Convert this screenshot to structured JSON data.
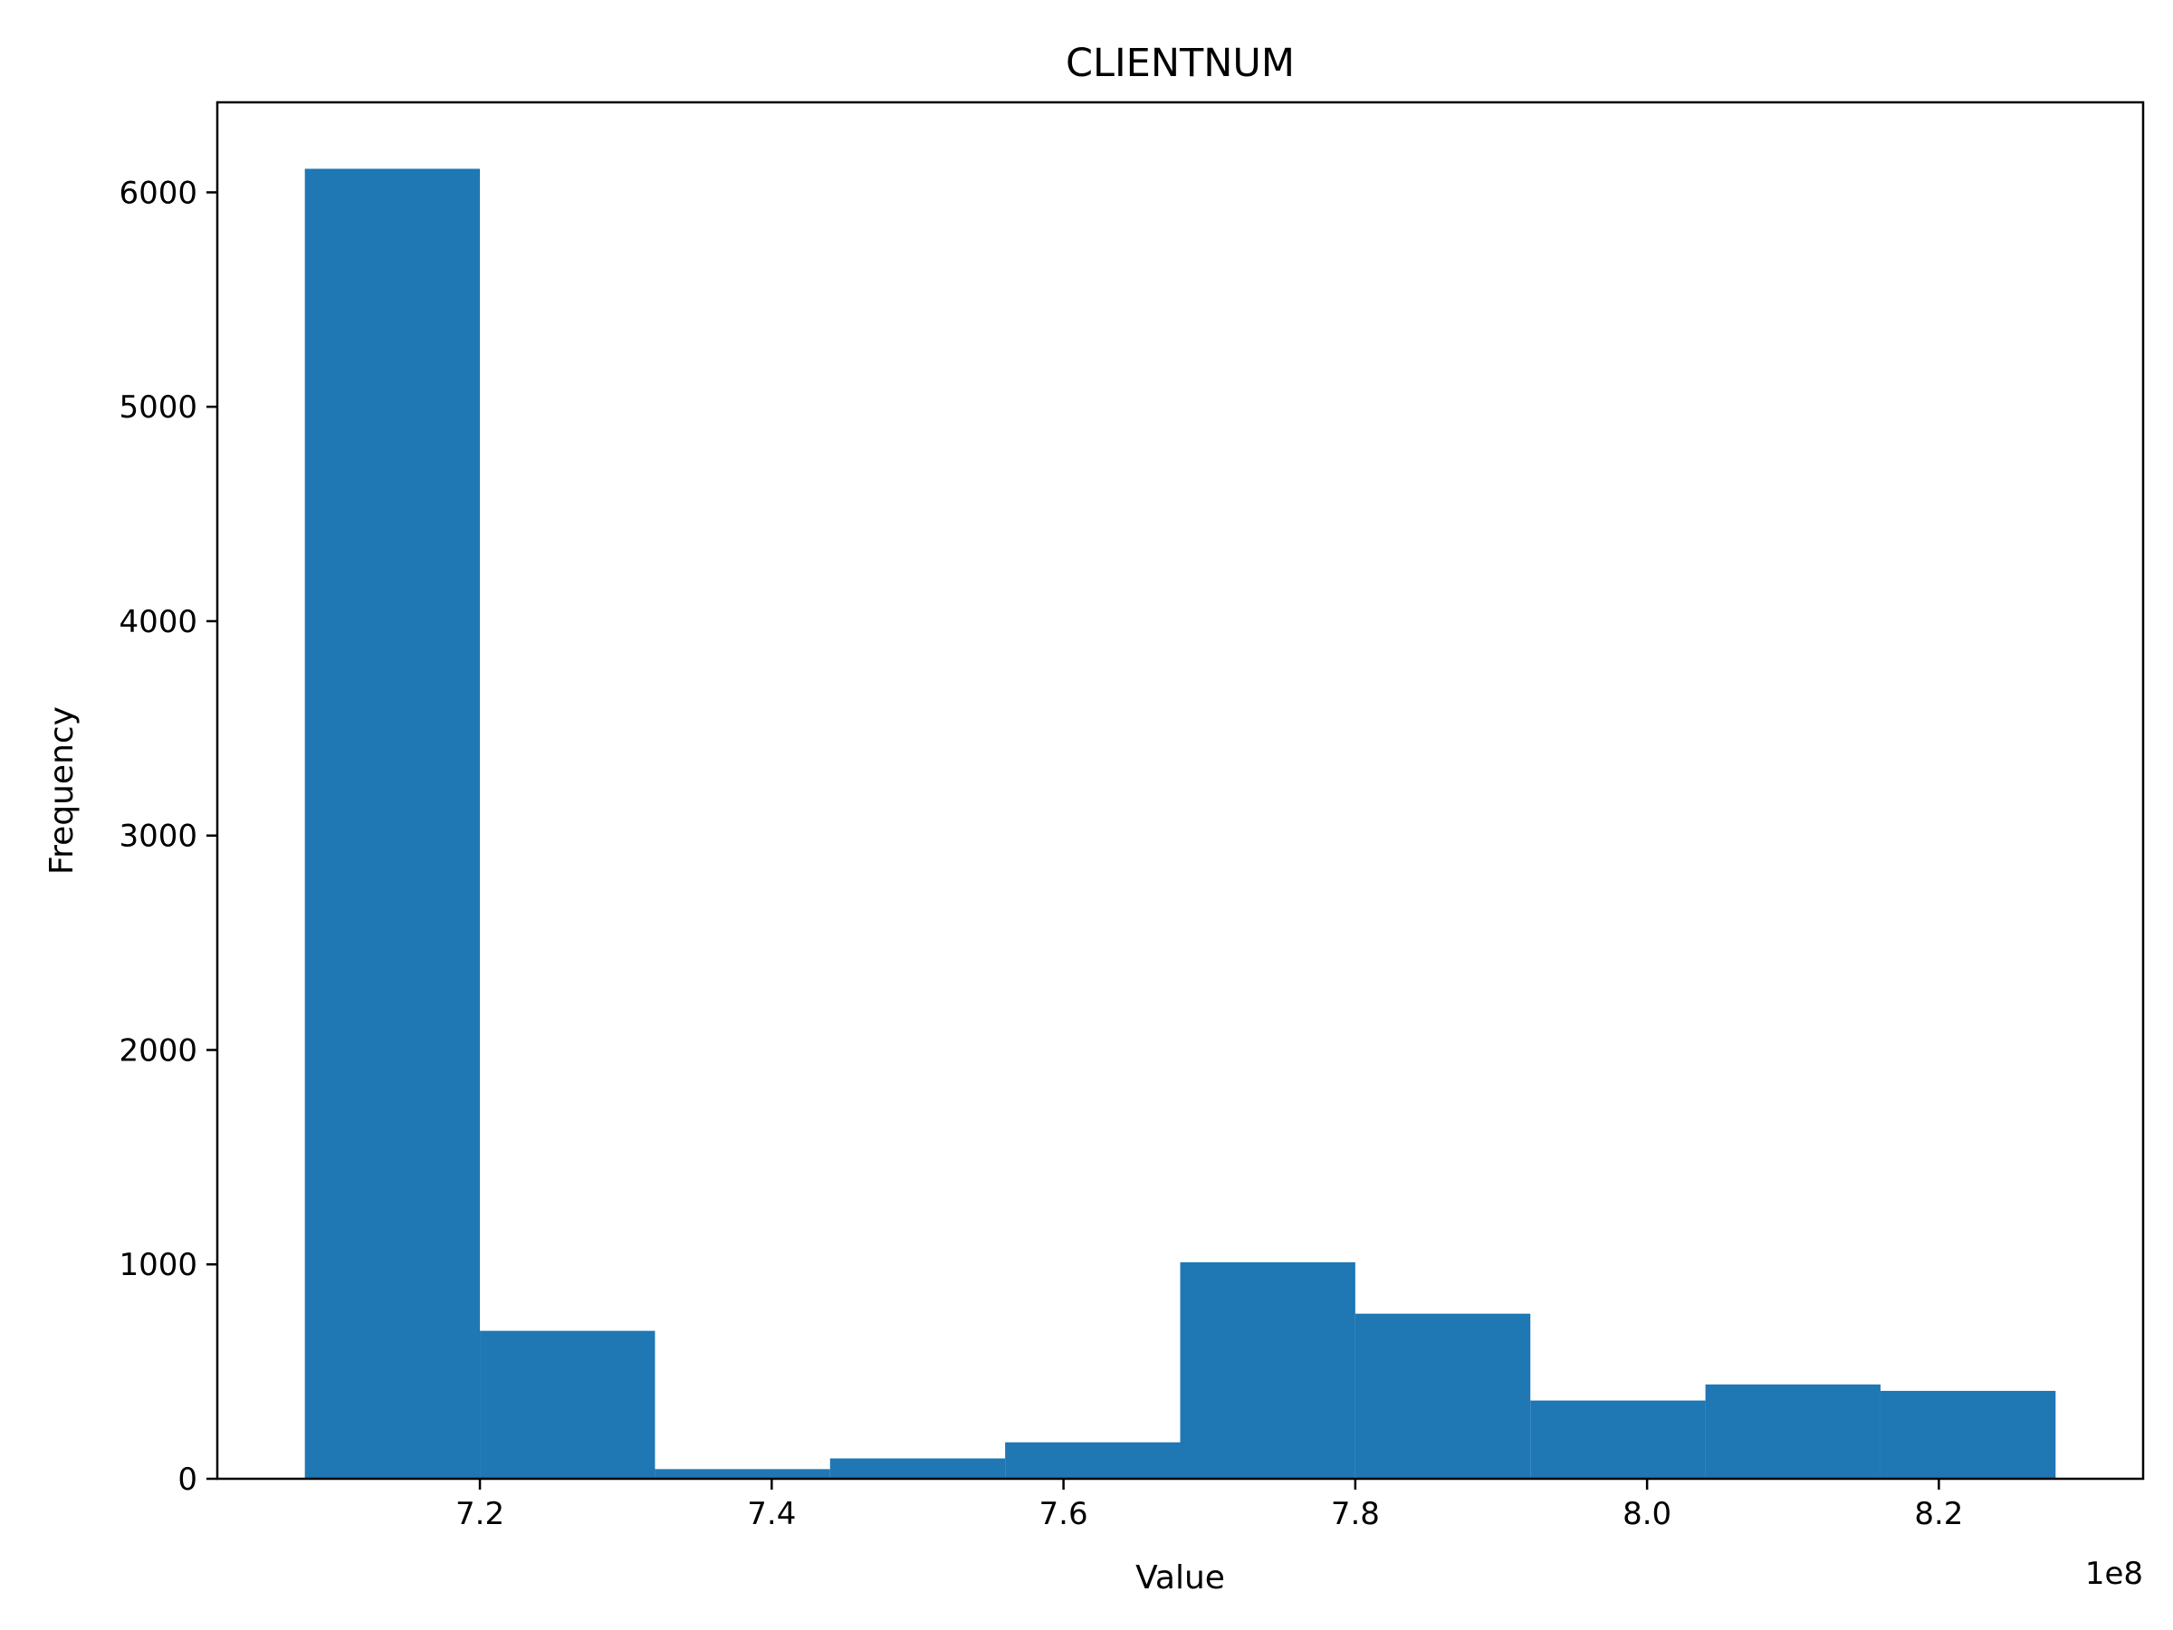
{
  "chart_data": {
    "type": "bar",
    "title": "CLIENTNUM",
    "xlabel": "Value",
    "ylabel": "Frequency",
    "x_offset_label": "1e8",
    "bins": [
      {
        "start": 7.08,
        "end": 7.2,
        "count": 6110
      },
      {
        "start": 7.2,
        "end": 7.32,
        "count": 690
      },
      {
        "start": 7.32,
        "end": 7.44,
        "count": 45
      },
      {
        "start": 7.44,
        "end": 7.56,
        "count": 95
      },
      {
        "start": 7.56,
        "end": 7.68,
        "count": 170
      },
      {
        "start": 7.68,
        "end": 7.8,
        "count": 1010
      },
      {
        "start": 7.8,
        "end": 7.92,
        "count": 770
      },
      {
        "start": 7.92,
        "end": 8.04,
        "count": 365
      },
      {
        "start": 8.04,
        "end": 8.16,
        "count": 440
      },
      {
        "start": 8.16,
        "end": 8.28,
        "count": 410
      }
    ],
    "xlim": [
      7.02,
      8.34
    ],
    "ylim": [
      0,
      6420
    ],
    "xticks": [
      {
        "value": 7.2,
        "label": "7.2"
      },
      {
        "value": 7.4,
        "label": "7.4"
      },
      {
        "value": 7.6,
        "label": "7.6"
      },
      {
        "value": 7.8,
        "label": "7.8"
      },
      {
        "value": 8.0,
        "label": "8.0"
      },
      {
        "value": 8.2,
        "label": "8.2"
      }
    ],
    "yticks": [
      {
        "value": 0,
        "label": "0"
      },
      {
        "value": 1000,
        "label": "1000"
      },
      {
        "value": 2000,
        "label": "2000"
      },
      {
        "value": 3000,
        "label": "3000"
      },
      {
        "value": 4000,
        "label": "4000"
      },
      {
        "value": 5000,
        "label": "5000"
      },
      {
        "value": 6000,
        "label": "6000"
      }
    ],
    "bar_color": "#1f77b4",
    "grid": false,
    "legend": "none"
  }
}
